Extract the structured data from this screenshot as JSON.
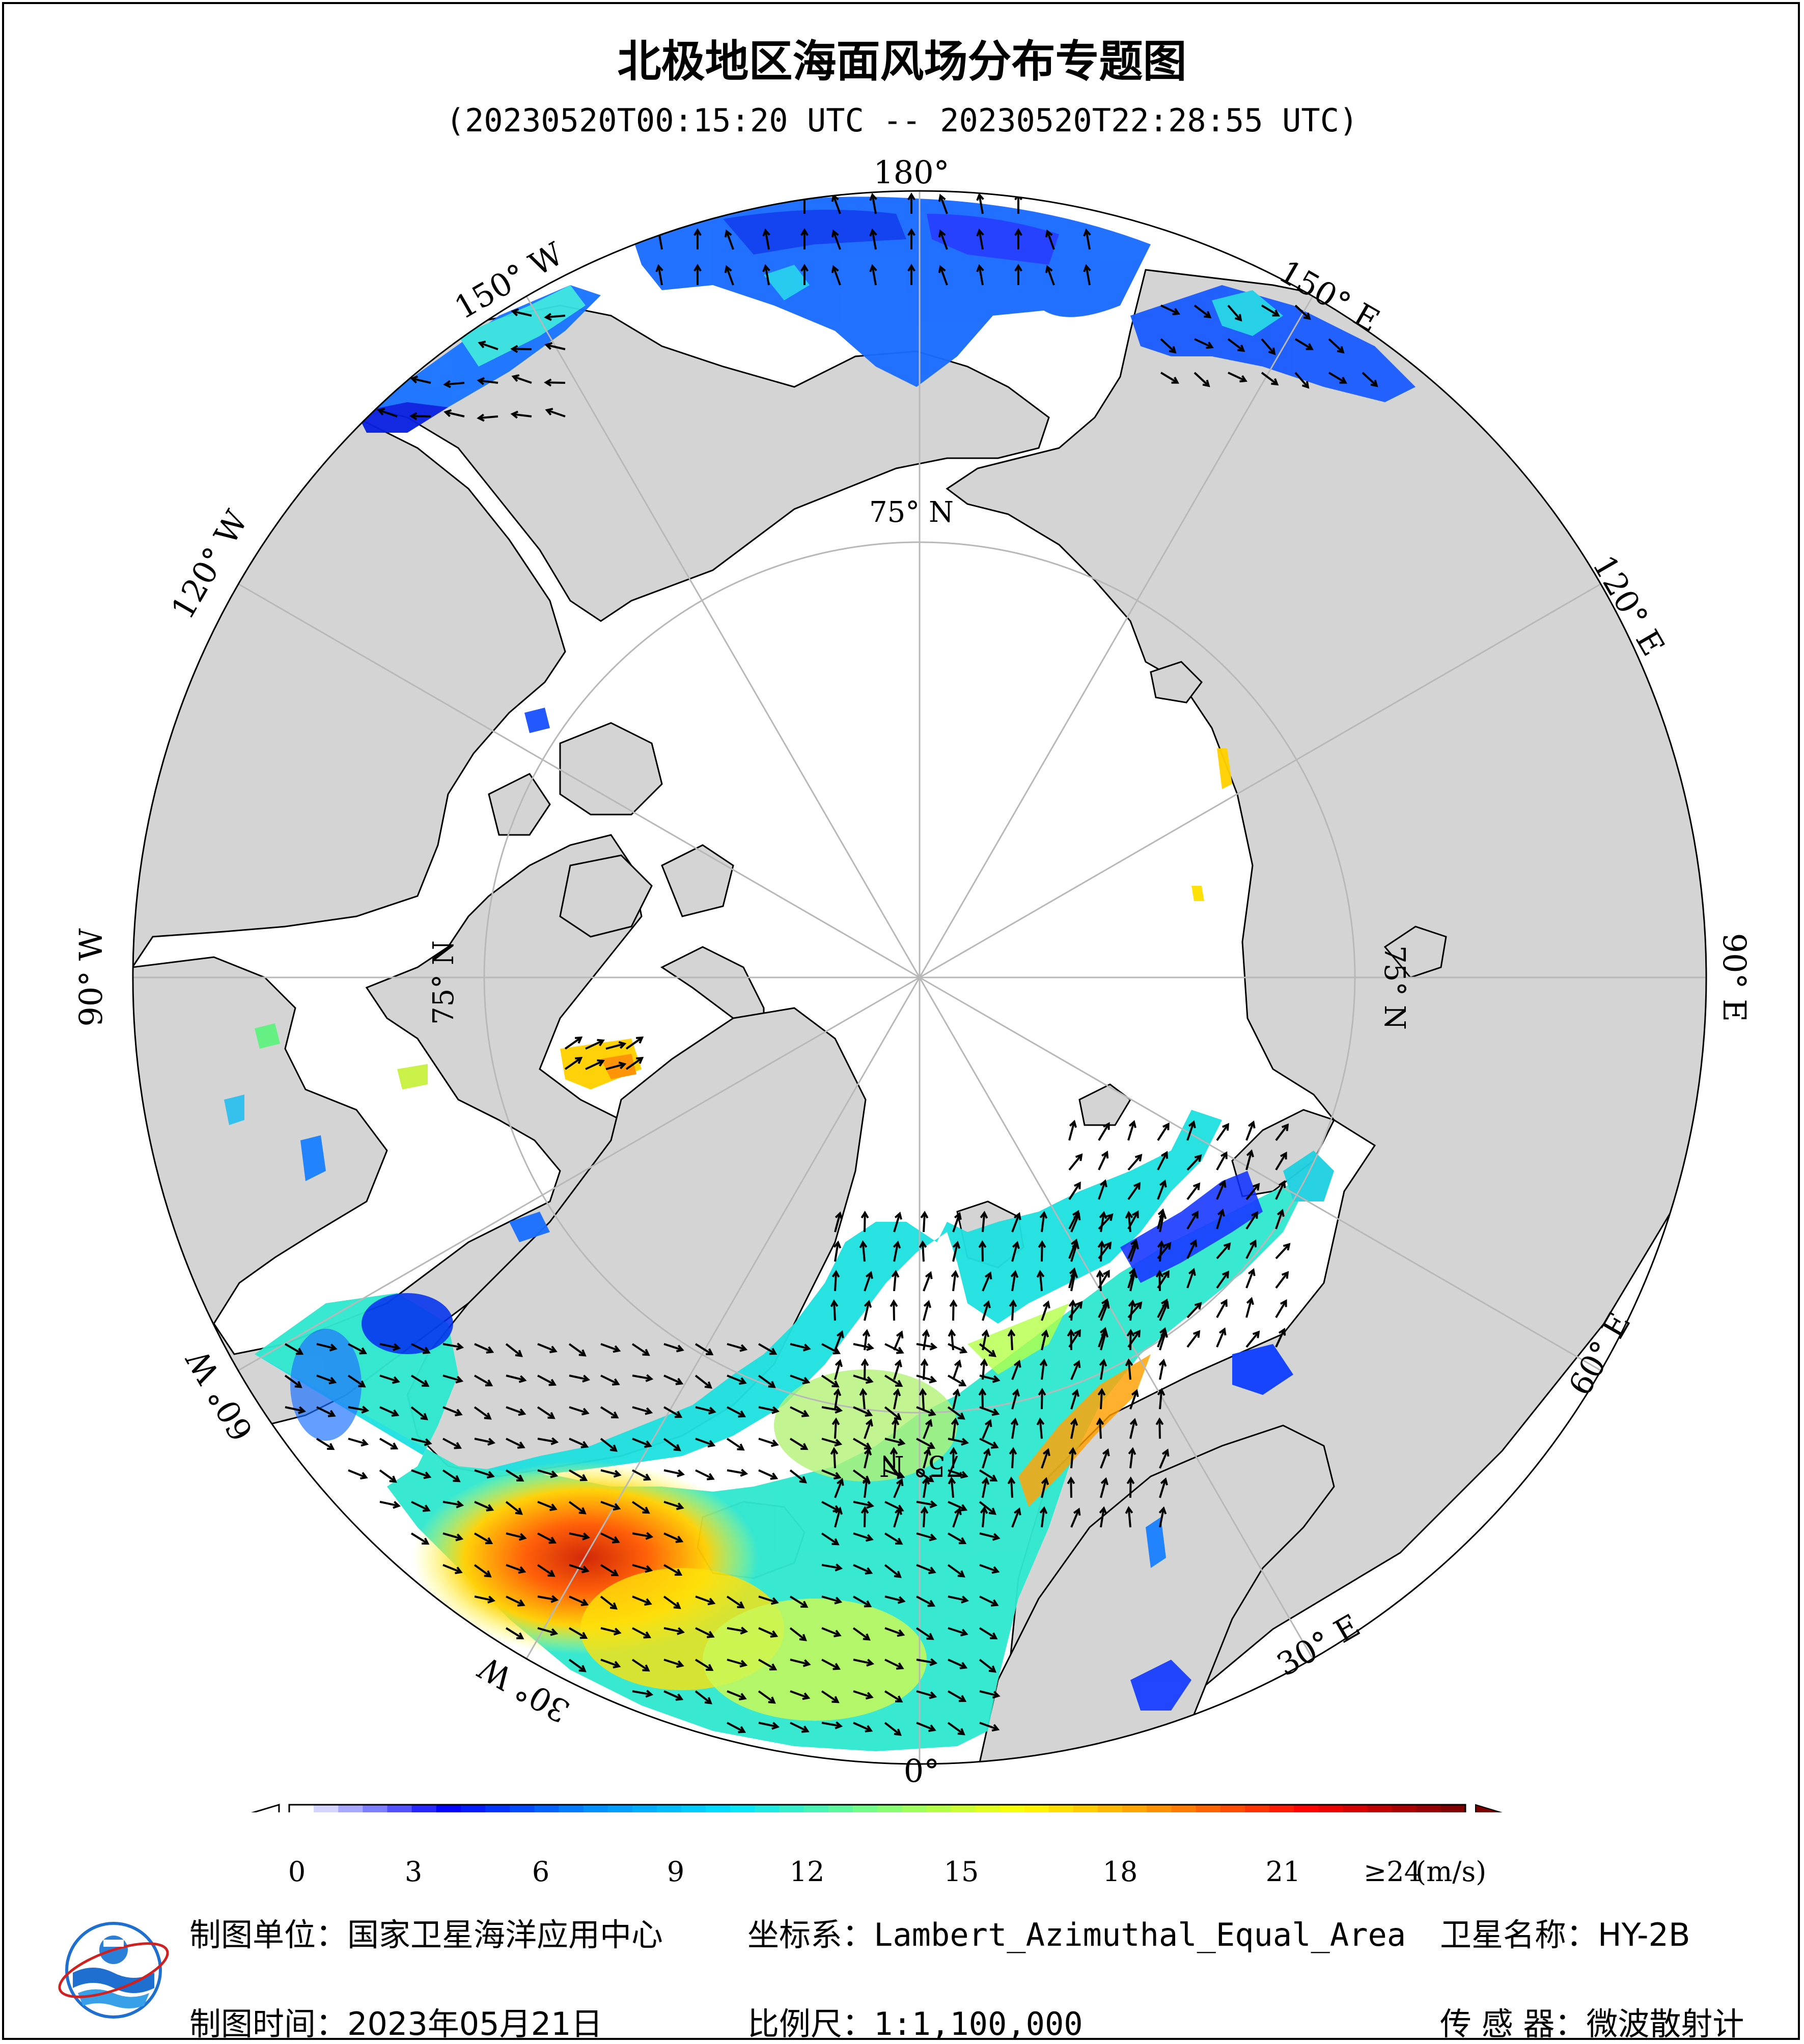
{
  "title": "北极地区海面风场分布专题图",
  "time_range": "(20230520T00:15:20 UTC -- 20230520T22:28:55 UTC)",
  "map": {
    "projection": "Lambert_Azimuthal_Equal_Area",
    "center": "North Pole",
    "longitude_labels": [
      "180°",
      "150° E",
      "120° E",
      "90° E",
      "60° E",
      "30° E",
      "0°",
      "30° W",
      "60° W",
      "90° W",
      "120° W",
      "150° W"
    ],
    "latitude_labels": [
      "75° N",
      "75° N",
      "75° N",
      "75° N"
    ],
    "colors": {
      "land": "#d4d4d4",
      "ocean_no_data": "#ffffff",
      "coastline": "#000000",
      "graticule": "#b8b8b8",
      "arrow": "#000000"
    }
  },
  "colorbar": {
    "ticks": [
      "0",
      "3",
      "6",
      "9",
      "12",
      "15",
      "18",
      "21",
      "≥24"
    ],
    "unit": "(m/s)",
    "range": [
      0,
      24
    ],
    "colors": [
      "#ffffff",
      "#0000ff",
      "#008cff",
      "#00e5ff",
      "#7dff7d",
      "#ffff00",
      "#ff8c00",
      "#ff0000",
      "#800000"
    ]
  },
  "footer": {
    "agency_label": "制图单位：",
    "agency": "国家卫星海洋应用中心",
    "date_label": "制图时间：",
    "date": "2023年05月21日",
    "crs_label": "坐标系：",
    "crs": "Lambert_Azimuthal_Equal_Area",
    "scale_label": "比例尺：",
    "scale": "1:1,100,000",
    "satellite_label": "卫星名称：",
    "satellite": "HY-2B",
    "sensor_label": "传 感 器：",
    "sensor": "微波散射计"
  },
  "logo": "nsoas-logo"
}
